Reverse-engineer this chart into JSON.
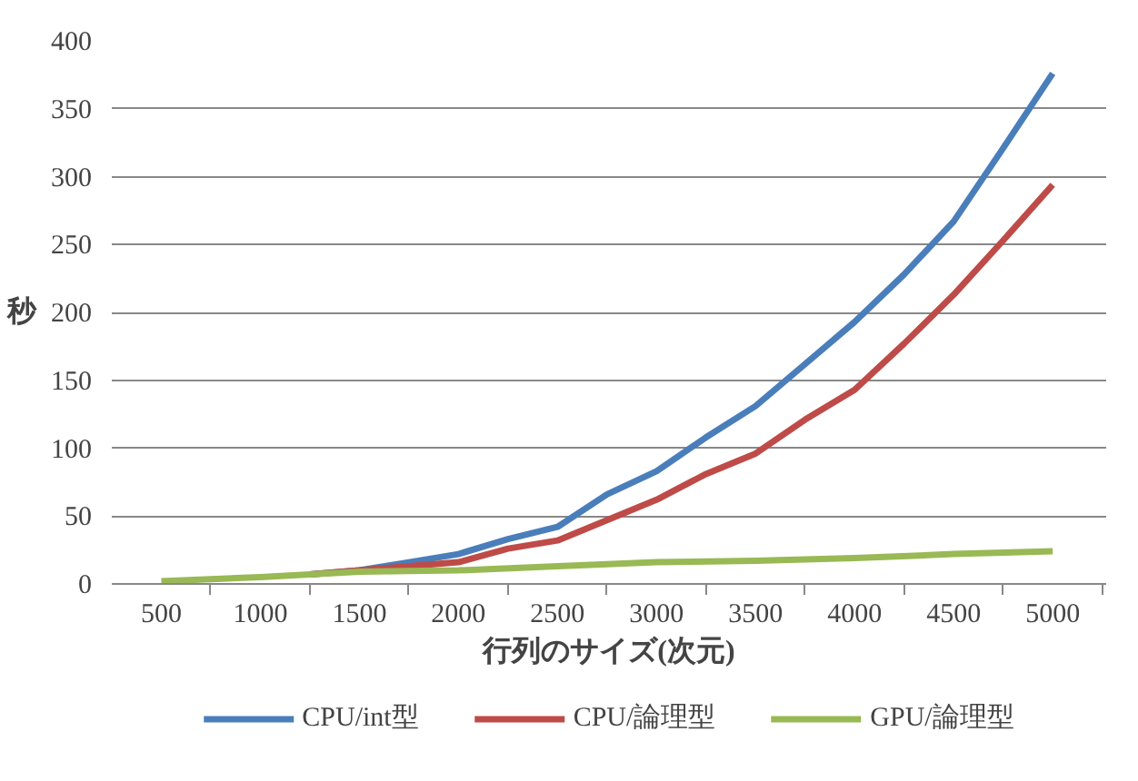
{
  "chart_data": {
    "type": "line",
    "xlabel": "行列のサイズ(次元)",
    "ylabel": "秒",
    "xlim": [
      250,
      5270
    ],
    "ylim": [
      0,
      400
    ],
    "xticks": [
      500,
      1000,
      1500,
      2000,
      2500,
      3000,
      3500,
      4000,
      4500,
      5000,
      {
        "value": 750,
        "label": null
      },
      {
        "value": 1250,
        "label": null
      },
      {
        "value": 1750,
        "label": null
      },
      {
        "value": 2250,
        "label": null
      },
      {
        "value": 2750,
        "label": null
      },
      {
        "value": 3250,
        "label": null
      },
      {
        "value": 3750,
        "label": null
      },
      {
        "value": 4250,
        "label": null
      },
      {
        "value": 4750,
        "label": null
      },
      {
        "value": 5250,
        "label": null
      }
    ],
    "yticks": [
      0,
      50,
      100,
      150,
      200,
      250,
      300,
      350,
      400
    ],
    "grid": "y",
    "legend": "bottom",
    "marker": "none",
    "line_style": "solid",
    "series": [
      {
        "name": "CPU/int型",
        "color": "#4a7ebb",
        "x": [
          1250,
          1500,
          1750,
          2000,
          2250,
          2500,
          2750,
          3000,
          3250,
          3500,
          3750,
          4000,
          4250,
          4500,
          4750,
          5000
        ],
        "values": [
          7,
          10,
          16,
          22,
          33,
          42,
          66,
          83,
          108,
          131,
          162,
          193,
          228,
          267,
          321,
          376
        ]
      },
      {
        "name": "CPU/論理型",
        "color": "#be4b48",
        "x": [
          1250,
          1500,
          1750,
          2000,
          2250,
          2500,
          2750,
          3000,
          3250,
          3500,
          3750,
          4000,
          4250,
          4500,
          4750,
          5000
        ],
        "values": [
          7,
          10,
          13,
          16,
          26,
          32,
          47,
          62,
          81,
          96,
          121,
          143,
          177,
          213,
          253,
          294
        ]
      },
      {
        "name": "GPU/論理型",
        "color": "#98b954",
        "x": [
          500,
          1000,
          1500,
          2000,
          2500,
          3000,
          3500,
          4000,
          4500,
          5000
        ],
        "values": [
          2,
          5,
          9,
          10,
          13,
          16,
          17,
          19,
          22,
          24
        ]
      }
    ]
  }
}
